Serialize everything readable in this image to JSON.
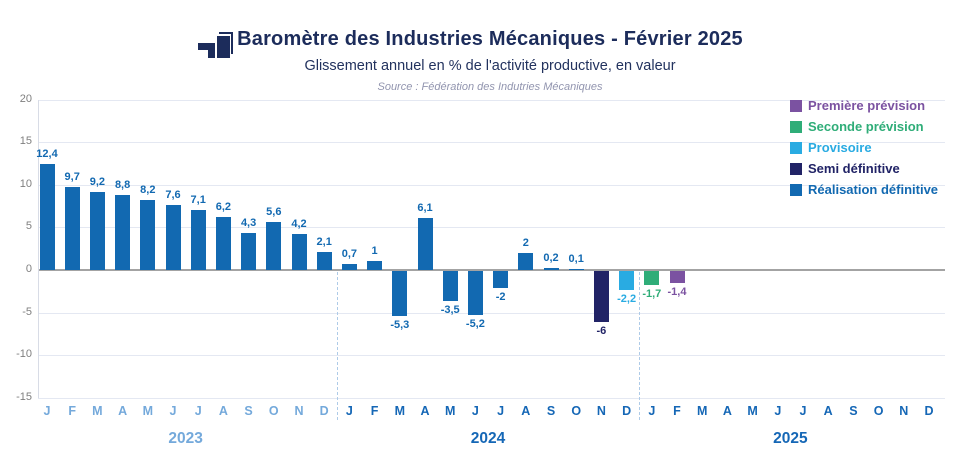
{
  "header": {
    "title": "Baromètre des Industries Mécaniques - Février 2025",
    "subtitle": "Glissement annuel en % de l'activité productive, en valeur",
    "source": "Source : Fédération des Indutries Mécaniques"
  },
  "legend": {
    "items": [
      {
        "label": "Première prévision",
        "series": "premiere",
        "color": "#7b52a1"
      },
      {
        "label": "Seconde prévision",
        "series": "seconde",
        "color": "#2fad78"
      },
      {
        "label": "Provisoire",
        "series": "provisoire",
        "color": "#29abe2"
      },
      {
        "label": "Semi définitive",
        "series": "semi",
        "color": "#212366"
      },
      {
        "label": "Réalisation définitive",
        "series": "realisation",
        "color": "#1269b1"
      }
    ]
  },
  "chart_data": {
    "type": "bar",
    "title": "Baromètre des Industries Mécaniques - Février 2025",
    "xlabel": "",
    "ylabel": "Glissement annuel en % de l'activité productive, en valeur",
    "ylim": [
      -15,
      20
    ],
    "yticks": [
      20,
      15,
      10,
      5,
      0,
      -5,
      -10,
      -15
    ],
    "grid": true,
    "legend_position": "top-right",
    "month_letters": [
      "J",
      "F",
      "M",
      "A",
      "M",
      "J",
      "J",
      "A",
      "S",
      "O",
      "N",
      "D"
    ],
    "years": [
      {
        "label": "2023",
        "color": "#74a9db"
      },
      {
        "label": "2024",
        "color": "#1567b6"
      },
      {
        "label": "2025",
        "color": "#1567b6"
      }
    ],
    "series_colors": {
      "realisation": "#1269b1",
      "semi": "#212366",
      "provisoire": "#29abe2",
      "seconde": "#2fad78",
      "premiere": "#7b52a1"
    },
    "points": [
      {
        "year": "2023",
        "month": "J",
        "value": 12.4,
        "label": "12,4",
        "series": "realisation"
      },
      {
        "year": "2023",
        "month": "F",
        "value": 9.7,
        "label": "9,7",
        "series": "realisation"
      },
      {
        "year": "2023",
        "month": "M",
        "value": 9.2,
        "label": "9,2",
        "series": "realisation"
      },
      {
        "year": "2023",
        "month": "A",
        "value": 8.8,
        "label": "8,8",
        "series": "realisation"
      },
      {
        "year": "2023",
        "month": "M",
        "value": 8.2,
        "label": "8,2",
        "series": "realisation"
      },
      {
        "year": "2023",
        "month": "J",
        "value": 7.6,
        "label": "7,6",
        "series": "realisation"
      },
      {
        "year": "2023",
        "month": "J",
        "value": 7.1,
        "label": "7,1",
        "series": "realisation"
      },
      {
        "year": "2023",
        "month": "A",
        "value": 6.2,
        "label": "6,2",
        "series": "realisation"
      },
      {
        "year": "2023",
        "month": "S",
        "value": 4.3,
        "label": "4,3",
        "series": "realisation"
      },
      {
        "year": "2023",
        "month": "O",
        "value": 5.6,
        "label": "5,6",
        "series": "realisation"
      },
      {
        "year": "2023",
        "month": "N",
        "value": 4.2,
        "label": "4,2",
        "series": "realisation"
      },
      {
        "year": "2023",
        "month": "D",
        "value": 2.1,
        "label": "2,1",
        "series": "realisation"
      },
      {
        "year": "2024",
        "month": "J",
        "value": 0.7,
        "label": "0,7",
        "series": "realisation"
      },
      {
        "year": "2024",
        "month": "F",
        "value": 1,
        "label": "1",
        "series": "realisation"
      },
      {
        "year": "2024",
        "month": "M",
        "value": -5.3,
        "label": "-5,3",
        "series": "realisation"
      },
      {
        "year": "2024",
        "month": "A",
        "value": 6.1,
        "label": "6,1",
        "series": "realisation"
      },
      {
        "year": "2024",
        "month": "M",
        "value": -3.5,
        "label": "-3,5",
        "series": "realisation"
      },
      {
        "year": "2024",
        "month": "J",
        "value": -5.2,
        "label": "-5,2",
        "series": "realisation"
      },
      {
        "year": "2024",
        "month": "J",
        "value": -2,
        "label": "-2",
        "series": "realisation"
      },
      {
        "year": "2024",
        "month": "A",
        "value": 2,
        "label": "2",
        "series": "realisation"
      },
      {
        "year": "2024",
        "month": "S",
        "value": 0.2,
        "label": "0,2",
        "series": "realisation"
      },
      {
        "year": "2024",
        "month": "O",
        "value": 0.1,
        "label": "0,1",
        "series": "realisation"
      },
      {
        "year": "2024",
        "month": "N",
        "value": -6,
        "label": "-6",
        "series": "semi"
      },
      {
        "year": "2024",
        "month": "D",
        "value": -2.2,
        "label": "-2,2",
        "series": "provisoire"
      },
      {
        "year": "2025",
        "month": "J",
        "value": -1.7,
        "label": "-1,7",
        "series": "seconde"
      },
      {
        "year": "2025",
        "month": "F",
        "value": -1.4,
        "label": "-1,4",
        "series": "premiere"
      }
    ]
  }
}
